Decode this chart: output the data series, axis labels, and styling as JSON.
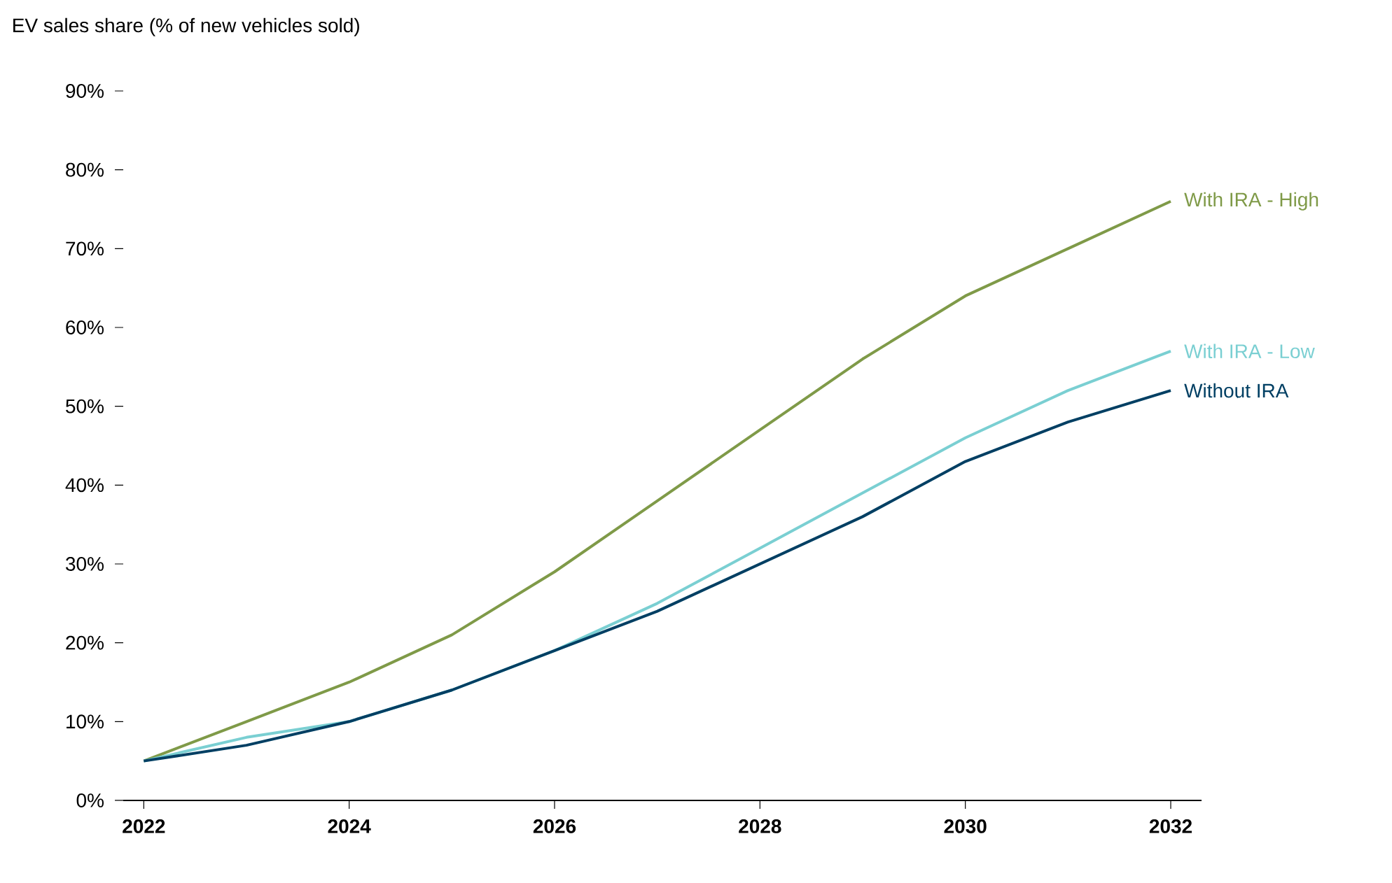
{
  "chart_data": {
    "type": "line",
    "ylabel": "EV sales share (% of new vehicles sold)",
    "x": [
      2022,
      2023,
      2024,
      2025,
      2026,
      2027,
      2028,
      2029,
      2030,
      2031,
      2032
    ],
    "xlim": [
      2021.8,
      2032.3
    ],
    "xticks": [
      2022,
      2024,
      2026,
      2028,
      2030,
      2032
    ],
    "ylim": [
      0,
      90
    ],
    "yticks": [
      {
        "value": 0,
        "label": "0%"
      },
      {
        "value": 10,
        "label": "10%"
      },
      {
        "value": 20,
        "label": "20%"
      },
      {
        "value": 30,
        "label": "30%"
      },
      {
        "value": 40,
        "label": "40%"
      },
      {
        "value": 50,
        "label": "50%"
      },
      {
        "value": 60,
        "label": "60%"
      },
      {
        "value": 70,
        "label": "70%"
      },
      {
        "value": 80,
        "label": "80%"
      },
      {
        "value": 90,
        "label": "90%"
      }
    ],
    "grid": false,
    "legend": false,
    "series": [
      {
        "name": "With IRA - High",
        "color": "#7f9a48",
        "values": [
          5,
          10,
          15,
          21,
          29,
          38,
          47,
          56,
          64,
          70,
          76
        ]
      },
      {
        "name": "With IRA - Low",
        "color": "#7acfd2",
        "values": [
          5,
          8,
          10,
          14,
          19,
          25,
          32,
          39,
          46,
          52,
          57
        ]
      },
      {
        "name": "Without IRA",
        "color": "#003f63",
        "values": [
          5,
          7,
          10,
          14,
          19,
          24,
          30,
          36,
          43,
          48,
          52
        ]
      }
    ]
  }
}
